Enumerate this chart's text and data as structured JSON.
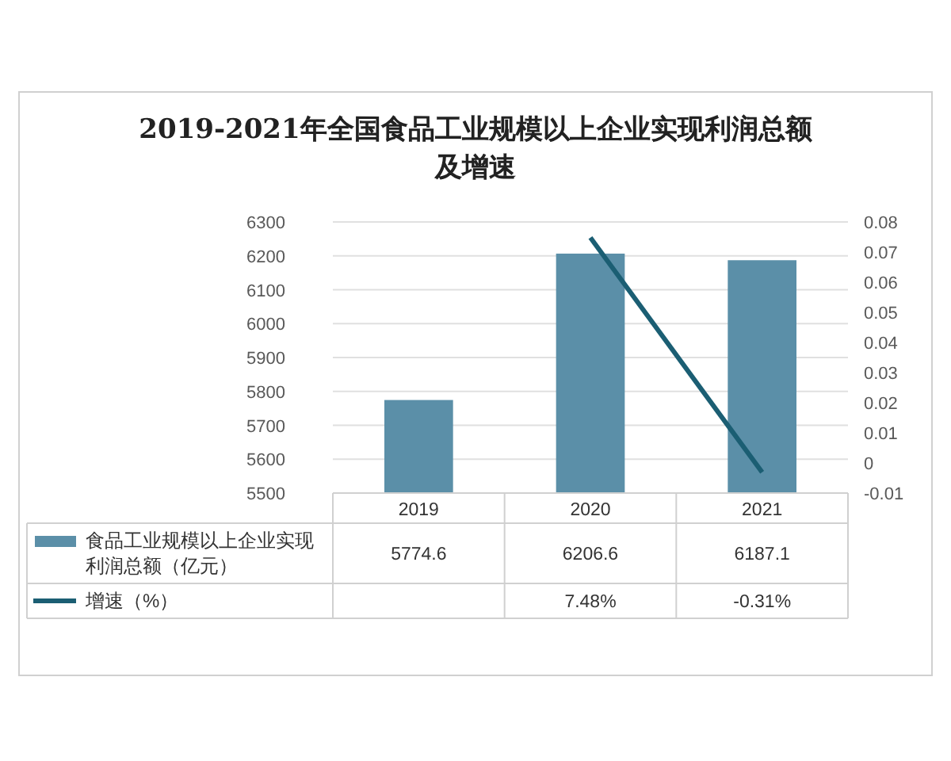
{
  "chart_data": {
    "type": "bar",
    "title": "2019-2021年全国食品工业规模以上企业实现利润总额及增速",
    "categories": [
      "2019",
      "2020",
      "2021"
    ],
    "series": [
      {
        "name": "食品工业规模以上企业实现利润总额（亿元）",
        "color": "#5b8fa8",
        "values": [
          5774.6,
          6206.6,
          6187.1
        ],
        "value_labels": [
          "5774.6",
          "6206.6",
          "6187.1"
        ]
      },
      {
        "name": "增速（%）",
        "type": "line",
        "axis": "y2",
        "color": "#1b5e73",
        "values": [
          null,
          0.0748,
          -0.0031
        ],
        "value_labels": [
          null,
          "7.48%",
          "-0.31%"
        ]
      }
    ],
    "ylim": [
      5500,
      6300
    ],
    "yticks": [
      5500,
      5600,
      5700,
      5800,
      5900,
      6000,
      6100,
      6200,
      6300
    ],
    "y2lim": [
      -0.01,
      0.08
    ],
    "y2ticks": [
      -0.01,
      0,
      0.01,
      0.02,
      0.03,
      0.04,
      0.05,
      0.06,
      0.07,
      0.08
    ],
    "grid": "y",
    "legend": "bottom",
    "line_style": "solid",
    "marker": "none"
  }
}
